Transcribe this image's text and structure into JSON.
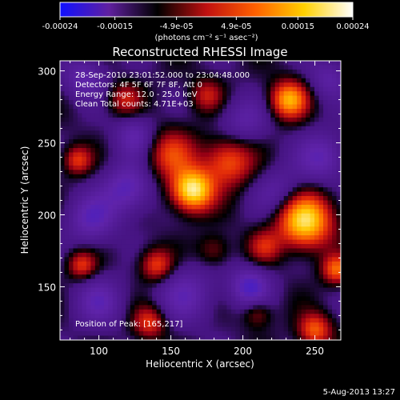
{
  "colorbar": {
    "ticks": [
      "-0.00024",
      "-0.00015",
      "-4.9e-05",
      "4.9e-05",
      "0.00015",
      "0.00024"
    ],
    "tick_values": [
      -0.00024,
      -0.00015,
      -4.9e-05,
      4.9e-05,
      0.00015,
      0.00024
    ],
    "range": [
      -0.00024,
      0.00024
    ],
    "unit": "(photons cm⁻² s⁻¹ asec⁻²)",
    "colors": [
      "#1010ff",
      "#6020a0",
      "#000000",
      "#c01010",
      "#ff6000",
      "#ffd000",
      "#ffffff"
    ]
  },
  "footer": {
    "date": "5-Aug-2013 13:27"
  },
  "chart_data": {
    "type": "heatmap",
    "title": "Reconstructed RHESSI Image",
    "xlabel": "Heliocentric X (arcsec)",
    "ylabel": "Heliocentric Y (arcsec)",
    "xlim": [
      73,
      268
    ],
    "ylim": [
      113,
      307
    ],
    "xticks": [
      "100",
      "150",
      "200",
      "250"
    ],
    "xtick_values": [
      100,
      150,
      200,
      250
    ],
    "yticks": [
      "150",
      "200",
      "250",
      "300"
    ],
    "ytick_values": [
      150,
      200,
      250,
      300
    ],
    "annotations": [
      "28-Sep-2010 23:01:52.000 to 23:04:48.000",
      "Detectors: 4F 5F 6F 7F 8F, Att 0",
      "Energy Range: 12.0 - 25.0 keV",
      "Clean    Total counts: 4.71E+03"
    ],
    "peak_label": "Position of Peak:  [165,217]",
    "peak": [
      165,
      217
    ],
    "sources": [
      {
        "x": 165,
        "y": 217,
        "intensity": 1.0,
        "width": 10
      },
      {
        "x": 243,
        "y": 196,
        "intensity": 0.95,
        "width": 13
      },
      {
        "x": 232,
        "y": 280,
        "intensity": 0.75,
        "width": 9
      },
      {
        "x": 190,
        "y": 237,
        "intensity": 0.55,
        "width": 12
      },
      {
        "x": 150,
        "y": 242,
        "intensity": 0.45,
        "width": 12
      },
      {
        "x": 140,
        "y": 165,
        "intensity": 0.5,
        "width": 8
      },
      {
        "x": 85,
        "y": 238,
        "intensity": 0.45,
        "width": 7
      },
      {
        "x": 88,
        "y": 165,
        "intensity": 0.45,
        "width": 7
      },
      {
        "x": 118,
        "y": 280,
        "intensity": 0.35,
        "width": 8
      },
      {
        "x": 175,
        "y": 283,
        "intensity": 0.35,
        "width": 8
      },
      {
        "x": 215,
        "y": 178,
        "intensity": 0.35,
        "width": 8
      },
      {
        "x": 265,
        "y": 162,
        "intensity": 0.55,
        "width": 7
      },
      {
        "x": 250,
        "y": 120,
        "intensity": 0.55,
        "width": 8
      },
      {
        "x": 135,
        "y": 125,
        "intensity": 0.45,
        "width": 8
      },
      {
        "x": 210,
        "y": 132,
        "intensity": 0.3,
        "width": 7
      },
      {
        "x": 180,
        "y": 175,
        "intensity": 0.25,
        "width": 8
      },
      {
        "x": 95,
        "y": 197,
        "intensity": -0.4,
        "width": 12
      },
      {
        "x": 120,
        "y": 218,
        "intensity": -0.45,
        "width": 12
      },
      {
        "x": 225,
        "y": 215,
        "intensity": -0.3,
        "width": 12
      },
      {
        "x": 160,
        "y": 145,
        "intensity": -0.35,
        "width": 14
      },
      {
        "x": 205,
        "y": 150,
        "intensity": -0.5,
        "width": 10
      },
      {
        "x": 100,
        "y": 140,
        "intensity": -0.35,
        "width": 12
      },
      {
        "x": 255,
        "y": 240,
        "intensity": -0.4,
        "width": 12
      },
      {
        "x": 200,
        "y": 265,
        "intensity": -0.3,
        "width": 12
      },
      {
        "x": 125,
        "y": 255,
        "intensity": -0.35,
        "width": 10
      },
      {
        "x": 90,
        "y": 295,
        "intensity": -0.35,
        "width": 10
      },
      {
        "x": 260,
        "y": 295,
        "intensity": -0.3,
        "width": 10
      }
    ]
  }
}
